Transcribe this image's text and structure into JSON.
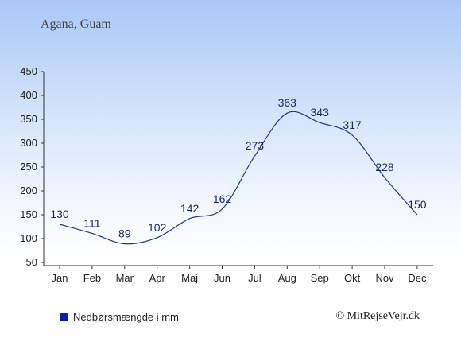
{
  "location_title": "Agana, Guam",
  "legend_label": "Nedbørsmængde i mm",
  "copyright": "© MitRejseVejr.dk",
  "colors": {
    "line": "#1f3399",
    "legend_swatch": "#0a1fa8",
    "axis": "#333333"
  },
  "chart_data": {
    "type": "line",
    "categories": [
      "Jan",
      "Feb",
      "Mar",
      "Apr",
      "Maj",
      "Jun",
      "Jul",
      "Aug",
      "Sep",
      "Okt",
      "Nov",
      "Dec"
    ],
    "series": [
      {
        "name": "Nedbørsmængde i mm",
        "values": [
          130,
          111,
          89,
          102,
          142,
          162,
          273,
          363,
          343,
          317,
          228,
          150
        ]
      }
    ],
    "y_ticks": [
      50,
      100,
      150,
      200,
      250,
      300,
      350,
      400,
      450
    ],
    "ylim": [
      50,
      450
    ],
    "grid": false,
    "legend_position": "bottom-left"
  }
}
